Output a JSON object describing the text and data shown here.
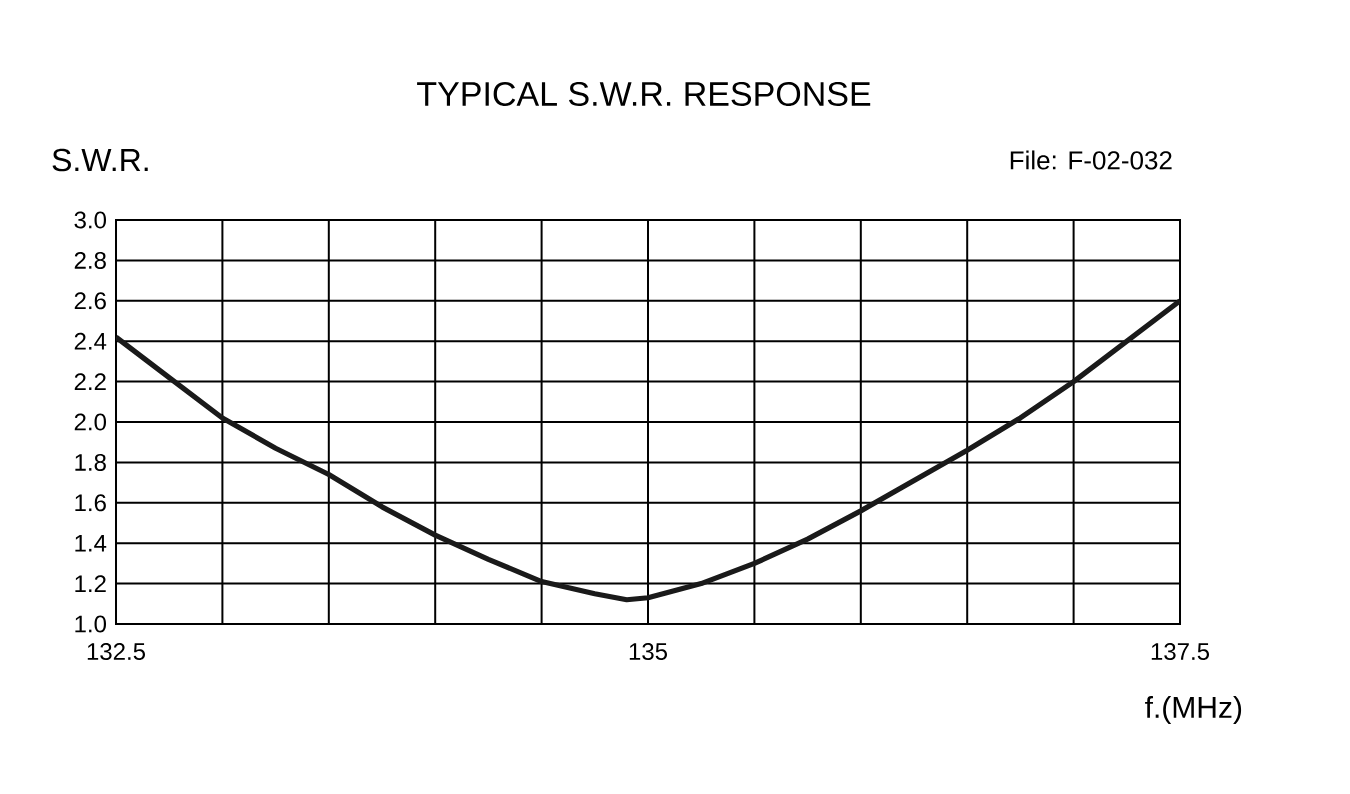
{
  "chart_data": {
    "type": "line",
    "title": "TYPICAL S.W.R. RESPONSE",
    "ylabel": "S.W.R.",
    "xlabel": "f.(MHz)",
    "annotations": [
      "File: F-02-032"
    ],
    "x": [
      132.5,
      132.75,
      133.0,
      133.25,
      133.5,
      133.75,
      134.0,
      134.25,
      134.5,
      134.75,
      134.9,
      135.0,
      135.25,
      135.5,
      135.75,
      136.0,
      136.25,
      136.5,
      136.75,
      137.0,
      137.25,
      137.5
    ],
    "series": [
      {
        "color": "#1a1a1a",
        "values": [
          2.42,
          2.22,
          2.02,
          1.87,
          1.74,
          1.58,
          1.44,
          1.32,
          1.21,
          1.15,
          1.12,
          1.13,
          1.2,
          1.3,
          1.42,
          1.56,
          1.71,
          1.86,
          2.02,
          2.2,
          2.4,
          2.6
        ]
      }
    ],
    "xlim": [
      132.5,
      137.5
    ],
    "xticks": [
      132.5,
      {
        "value": 133,
        "label": null
      },
      {
        "value": 133.5,
        "label": null
      },
      {
        "value": 134,
        "label": null
      },
      {
        "value": 134.5,
        "label": null
      },
      135,
      {
        "value": 135.5,
        "label": null
      },
      {
        "value": 136,
        "label": null
      },
      {
        "value": 136.5,
        "label": null
      },
      {
        "value": 137,
        "label": null
      },
      137.5
    ],
    "ylim": [
      1.0,
      3.0
    ],
    "yticks": [
      {
        "value": 1,
        "label": "1.0"
      },
      1.2,
      1.4,
      1.6,
      1.8,
      {
        "value": 2,
        "label": "2.0"
      },
      2.2,
      2.4,
      2.6,
      2.8,
      {
        "value": 3,
        "label": "3.0"
      }
    ],
    "grid": true,
    "marker": "none",
    "line_style": "solid"
  }
}
